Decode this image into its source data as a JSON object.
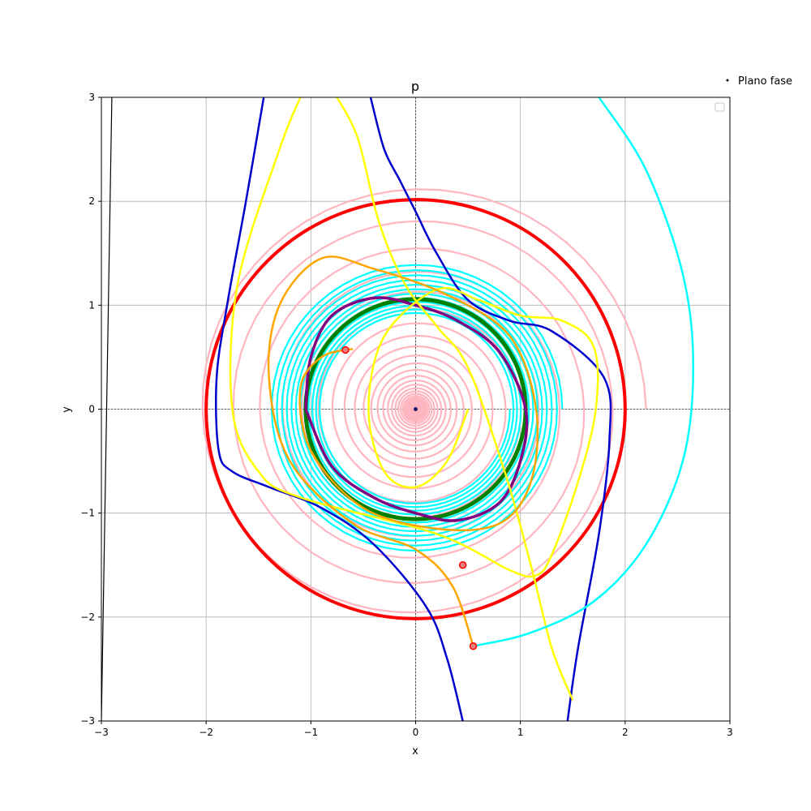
{
  "chart_data": {
    "type": "line",
    "title": "p",
    "xlabel": "x",
    "ylabel": "y",
    "xlim": [
      -3,
      3
    ],
    "ylim": [
      -3,
      3
    ],
    "xticks": [
      -3,
      -2,
      -1,
      0,
      1,
      2,
      3
    ],
    "yticks": [
      -3,
      -2,
      -1,
      0,
      1,
      2,
      3
    ],
    "tick_labels_x": [
      "−3",
      "−2",
      "−1",
      "0",
      "1",
      "2",
      "3"
    ],
    "tick_labels_y": [
      "−3",
      "−2",
      "−1",
      "0",
      "1",
      "2",
      "3"
    ],
    "grid": true,
    "legend": {
      "entries": [
        "Plano fase"
      ],
      "placement": "outside top-right"
    },
    "colors": {
      "limit_cycle_outer": "#ff0000",
      "limit_cycle_inner": "#008000",
      "spiral_pink": "#ffb6c1",
      "spiral_cyan": "#00ffff",
      "separatrix": "#0000cd",
      "trajectory_yellow": "#ffff00",
      "trajectory_orange": "#ffa500",
      "trajectory_purple": "#800080",
      "far_trajectory": "#000000",
      "marker": "#ff0000"
    },
    "series": [
      {
        "kind": "circle",
        "color_key": "limit_cycle_outer",
        "r": 2.0
      },
      {
        "kind": "circle",
        "color_key": "limit_cycle_inner",
        "r": 1.05
      },
      {
        "kind": "spiral",
        "color_key": "spiral_pink",
        "r_start": 2.2,
        "r_end": 0.02,
        "turns": 30
      },
      {
        "kind": "spiral",
        "color_key": "spiral_cyan",
        "r_start": 1.4,
        "r_end": 0.9,
        "turns": 12
      },
      {
        "kind": "polyline",
        "color_key": "separatrix",
        "x": [
          -1.45,
          -1.62,
          -1.8,
          -1.9,
          -1.88,
          -1.75,
          -1.4,
          -0.9,
          -0.4,
          0.1,
          0.3,
          0.45
        ],
        "y": [
          3.0,
          2.0,
          1.0,
          0.3,
          -0.4,
          -0.6,
          -0.75,
          -0.95,
          -1.3,
          -1.9,
          -2.4,
          -3.0
        ]
      },
      {
        "kind": "polyline",
        "color_key": "separatrix",
        "x": [
          -0.43,
          -0.3,
          -0.15,
          0.0,
          0.2,
          0.5,
          0.9,
          1.3,
          1.8,
          1.85,
          1.75,
          1.55,
          1.45
        ],
        "y": [
          3.0,
          2.5,
          2.2,
          1.9,
          1.5,
          1.05,
          0.85,
          0.75,
          0.3,
          -0.3,
          -1.2,
          -2.3,
          -3.0
        ]
      },
      {
        "kind": "polyline",
        "color_key": "trajectory_purple",
        "x": [
          -1.05,
          -1.0,
          -0.8,
          -0.4,
          0.0,
          0.4,
          0.8,
          1.05,
          1.0,
          0.8,
          0.4,
          0.0,
          -0.4,
          -0.8,
          -1.05
        ],
        "y": [
          0.0,
          0.5,
          0.9,
          1.07,
          1.0,
          0.85,
          0.55,
          0.0,
          -0.5,
          -0.9,
          -1.07,
          -1.0,
          -0.85,
          -0.55,
          0.0
        ]
      },
      {
        "kind": "polyline",
        "color_key": "trajectory_yellow",
        "x": [
          -1.1,
          -1.3,
          -1.7,
          -1.75,
          -1.5,
          -1.1,
          0.2,
          0.9,
          1.15,
          1.3,
          1.55,
          1.72,
          1.7,
          1.4,
          1.0,
          0.6,
          0.2,
          -0.3,
          -0.45,
          -0.3,
          0.0,
          0.3,
          0.5
        ],
        "y": [
          3.0,
          2.5,
          1.2,
          0.0,
          -0.6,
          -0.85,
          -1.2,
          -1.55,
          -1.6,
          -1.4,
          -0.7,
          0.0,
          0.6,
          0.85,
          0.9,
          1.05,
          1.15,
          0.7,
          0.0,
          -0.6,
          -0.75,
          -0.5,
          0.0
        ]
      },
      {
        "kind": "polyline",
        "color_key": "trajectory_yellow",
        "x": [
          -0.75,
          -0.55,
          -0.35,
          -0.1,
          0.2,
          0.5,
          0.85,
          1.1,
          1.3,
          1.5
        ],
        "y": [
          3.0,
          2.6,
          1.8,
          1.2,
          0.8,
          0.4,
          -0.6,
          -1.5,
          -2.3,
          -2.8
        ]
      },
      {
        "kind": "polyline",
        "color_key": "trajectory_orange",
        "x": [
          0.55,
          0.35,
          0.0,
          -0.6,
          -1.2,
          -1.4,
          -1.3,
          -0.9,
          -0.4,
          0.3,
          0.9,
          1.15,
          1.1,
          0.8,
          0.2,
          -0.5,
          -1.0,
          -1.1,
          -0.9,
          -0.6
        ],
        "y": [
          -2.28,
          -1.7,
          -1.35,
          -1.1,
          -0.5,
          0.3,
          1.0,
          1.45,
          1.35,
          1.1,
          0.7,
          0.0,
          -0.7,
          -1.1,
          -1.15,
          -0.95,
          -0.4,
          0.2,
          0.5,
          0.58
        ]
      },
      {
        "kind": "polyline",
        "color_key": "spiral_cyan",
        "x": [
          1.75,
          2.2,
          2.55,
          2.65,
          2.55,
          2.2,
          1.7,
          1.1,
          0.55
        ],
        "y": [
          3.0,
          2.3,
          1.3,
          0.4,
          -0.5,
          -1.3,
          -1.85,
          -2.15,
          -2.28
        ]
      },
      {
        "kind": "polyline",
        "color_key": "far_trajectory",
        "x": [
          -2.9,
          -2.95,
          -3.0
        ],
        "y": [
          3.0,
          0.0,
          -3.0
        ]
      }
    ],
    "markers": [
      {
        "x": 0.45,
        "y": -1.5
      },
      {
        "x": 0.55,
        "y": -2.28
      },
      {
        "x": -0.67,
        "y": 0.57
      }
    ],
    "center_point": {
      "x": 0,
      "y": 0
    }
  }
}
